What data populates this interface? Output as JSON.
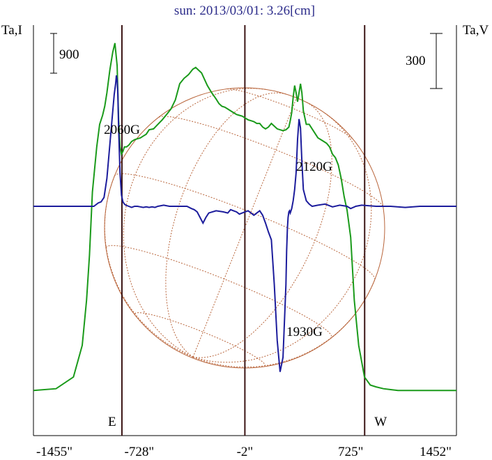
{
  "chart_data": {
    "type": "line",
    "title": "sun: 2013/03/01: 3.26[cm]",
    "left_axis_label": "Ta,I",
    "right_axis_label": "Ta,V",
    "left_scale_bar": "900",
    "right_scale_bar": "300",
    "x_ticks": [
      "-1455\"",
      "-728\"",
      "-2\"",
      "725\"",
      "1452\""
    ],
    "x_tick_values": [
      -1455,
      -728,
      -2,
      725,
      1452
    ],
    "xlim": [
      -1455,
      1452
    ],
    "limb_markers": [
      {
        "label": "E",
        "x": -728
      },
      {
        "label": "W",
        "x": 725
      }
    ],
    "center_line_x": -2,
    "annotations": [
      {
        "text": "2060G",
        "x": -840,
        "y": 1030
      },
      {
        "text": "2120G",
        "x": 410,
        "y": 240
      },
      {
        "text": "1930G",
        "x": 300,
        "y": -1325
      }
    ],
    "series": [
      {
        "name": "Ta,I",
        "color": "#1a9a1a",
        "ylim": [
          -500,
          4050
        ],
        "x": [
          -1455,
          -1300,
          -1180,
          -1120,
          -1090,
          -1070,
          -1050,
          -1020,
          -1000,
          -980,
          -965,
          -950,
          -930,
          -910,
          -895,
          -880,
          -870,
          -860,
          -850,
          -840,
          -830,
          -815,
          -800,
          -780,
          -760,
          -740,
          -720,
          -700,
          -680,
          -660,
          -630,
          -600,
          -570,
          -540,
          -510,
          -480,
          -450,
          -420,
          -390,
          -360,
          -340,
          -300,
          -260,
          -230,
          -200,
          -180,
          -160,
          -140,
          -120,
          -100,
          -80,
          -60,
          -40,
          -20,
          0,
          20,
          40,
          60,
          80,
          100,
          120,
          140,
          160,
          180,
          200,
          220,
          240,
          260,
          280,
          300,
          310,
          320,
          330,
          340,
          350,
          360,
          370,
          380,
          390,
          400,
          420,
          440,
          460,
          480,
          500,
          520,
          540,
          560,
          580,
          600,
          620,
          640,
          660,
          680,
          700,
          725,
          750,
          780,
          820,
          860,
          900,
          950,
          1000,
          1050,
          1100,
          1150,
          1200,
          1300,
          1400,
          1452
        ],
        "y": [
          0,
          20,
          150,
          500,
          1000,
          1500,
          2200,
          2700,
          2950,
          3050,
          3150,
          3300,
          3550,
          3750,
          3850,
          3600,
          3000,
          2700,
          2620,
          2650,
          2700,
          2700,
          2720,
          2760,
          2780,
          2790,
          2800,
          2820,
          2840,
          2890,
          2900,
          2950,
          3000,
          3060,
          3120,
          3220,
          3400,
          3460,
          3500,
          3560,
          3580,
          3520,
          3380,
          3300,
          3230,
          3180,
          3150,
          3140,
          3120,
          3100,
          3080,
          3060,
          3050,
          3040,
          3020,
          3000,
          2990,
          2980,
          2960,
          2960,
          2920,
          2900,
          2920,
          2960,
          2930,
          2900,
          2890,
          2880,
          2890,
          2920,
          2990,
          3080,
          3250,
          3380,
          3300,
          3200,
          3300,
          3400,
          3300,
          3100,
          2950,
          2950,
          2900,
          2850,
          2800,
          2780,
          2760,
          2740,
          2700,
          2620,
          2580,
          2500,
          2350,
          2150,
          2000,
          1700,
          1000,
          500,
          150,
          60,
          40,
          20,
          10,
          0,
          0,
          0,
          0,
          0,
          0,
          0
        ]
      },
      {
        "name": "Ta,V",
        "color": "#1c1c9c",
        "ylim": [
          -2050,
          1620
        ],
        "x": [
          -1455,
          -1200,
          -1040,
          -1010,
          -990,
          -970,
          -950,
          -930,
          -910,
          -900,
          -890,
          -885,
          -880,
          -875,
          -870,
          -860,
          -850,
          -840,
          -830,
          -820,
          -800,
          -780,
          -760,
          -740,
          -720,
          -700,
          -680,
          -660,
          -640,
          -620,
          -600,
          -560,
          -520,
          -480,
          -440,
          -400,
          -370,
          -350,
          -330,
          -310,
          -290,
          -270,
          -250,
          -200,
          -150,
          -120,
          -100,
          -80,
          -60,
          -40,
          -20,
          0,
          20,
          40,
          60,
          80,
          100,
          120,
          140,
          160,
          180,
          200,
          220,
          240,
          260,
          280,
          285,
          290,
          295,
          300,
          305,
          310,
          320,
          330,
          340,
          350,
          360,
          370,
          380,
          390,
          400,
          420,
          440,
          460,
          500,
          550,
          600,
          650,
          700,
          725,
          760,
          800,
          900,
          1000,
          1100,
          1200,
          1300,
          1452
        ],
        "y": [
          0,
          0,
          0,
          30,
          40,
          80,
          250,
          550,
          850,
          1000,
          1100,
          1170,
          1130,
          1000,
          700,
          300,
          100,
          40,
          20,
          10,
          0,
          -10,
          0,
          0,
          -5,
          -10,
          -5,
          -10,
          -5,
          -10,
          0,
          10,
          0,
          0,
          0,
          0,
          -20,
          -30,
          -50,
          -100,
          -150,
          -100,
          -60,
          -40,
          -50,
          -60,
          -30,
          -40,
          -50,
          -70,
          -60,
          -50,
          -40,
          -60,
          -80,
          -60,
          -40,
          -80,
          -150,
          -230,
          -300,
          -700,
          -1200,
          -1480,
          -1350,
          -700,
          -400,
          -200,
          -100,
          -50,
          -40,
          -60,
          -20,
          50,
          150,
          300,
          600,
          780,
          700,
          400,
          150,
          50,
          20,
          0,
          10,
          20,
          -5,
          10,
          0,
          -20,
          0,
          10,
          0,
          0,
          -10,
          0,
          0,
          0
        ]
      }
    ]
  }
}
